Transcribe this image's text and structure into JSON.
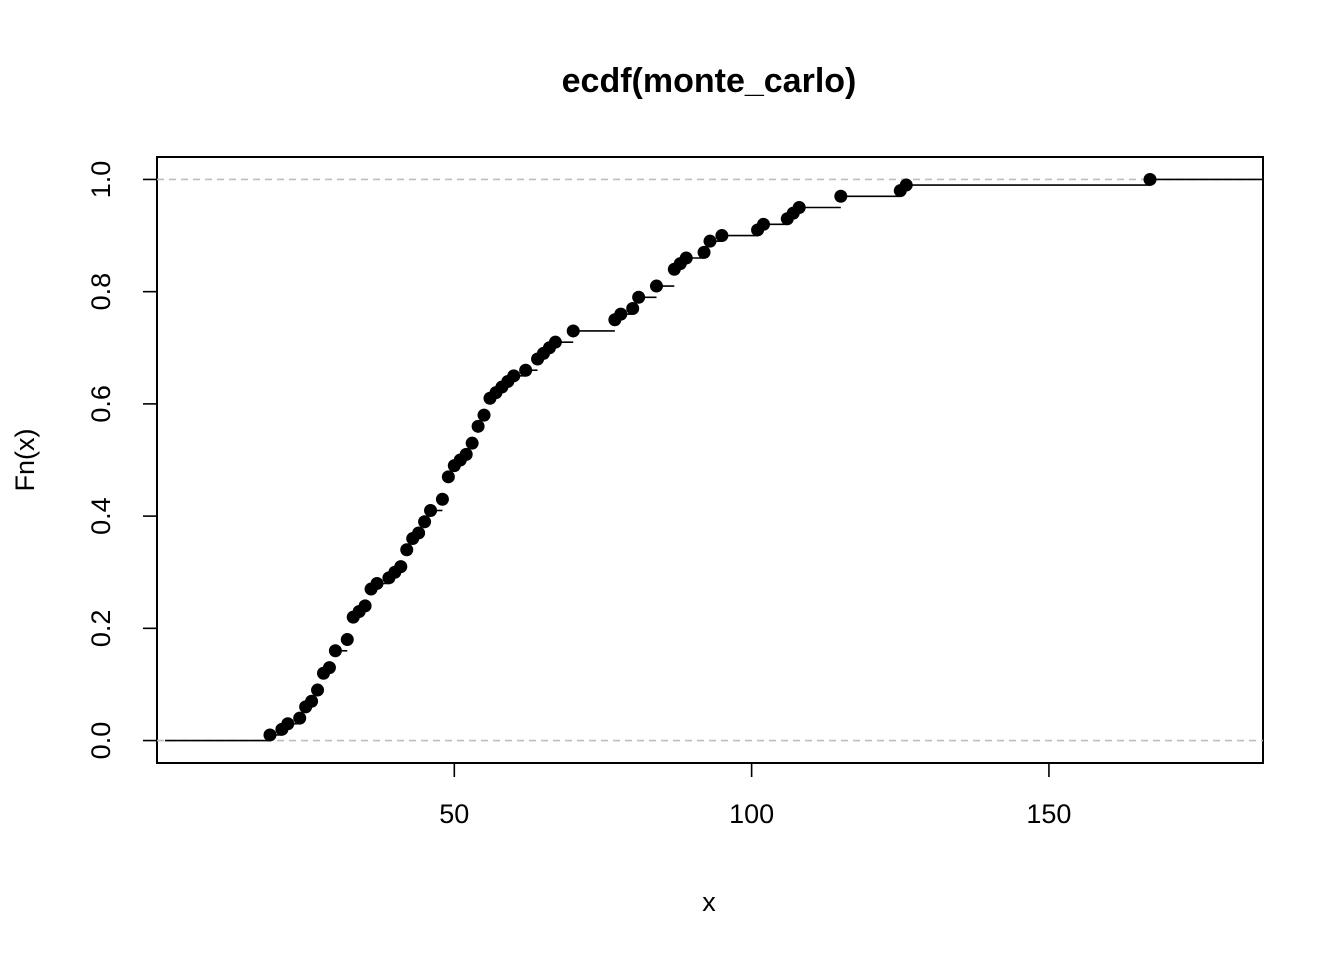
{
  "chart_data": {
    "type": "line",
    "subtype": "ecdf-step",
    "title": "ecdf(monte_carlo)",
    "xlabel": "x",
    "ylabel": "Fn(x)",
    "xlim": [
      0,
      186
    ],
    "ylim": [
      -0.04,
      1.04
    ],
    "x_ticks": [
      "50",
      "100",
      "150"
    ],
    "y_ticks": [
      "0.0",
      "0.2",
      "0.4",
      "0.6",
      "0.8",
      "1.0"
    ],
    "reference_lines_y": [
      0,
      1
    ],
    "grid": false,
    "legend": "none",
    "colors": {
      "points": "#000000",
      "steps": "#000000",
      "reference": "#bebebe"
    },
    "series": [
      {
        "x": [
          19,
          21,
          22,
          24,
          25,
          26,
          27,
          28,
          29,
          30,
          32,
          33,
          34,
          35,
          36,
          37,
          39,
          40,
          41,
          42,
          43,
          44,
          45,
          46,
          48,
          49,
          50,
          51,
          52,
          53,
          54,
          55,
          56,
          57,
          58,
          59,
          60,
          62,
          64,
          65,
          66,
          67,
          70,
          77,
          78,
          80,
          81,
          84,
          87,
          88,
          89,
          92,
          93,
          95,
          101,
          102,
          106,
          107,
          108,
          115,
          125,
          126,
          167
        ],
        "y": [
          0.01,
          0.02,
          0.03,
          0.04,
          0.06,
          0.07,
          0.09,
          0.12,
          0.13,
          0.16,
          0.18,
          0.22,
          0.23,
          0.24,
          0.27,
          0.28,
          0.29,
          0.3,
          0.31,
          0.34,
          0.36,
          0.37,
          0.39,
          0.41,
          0.43,
          0.47,
          0.49,
          0.5,
          0.51,
          0.53,
          0.56,
          0.58,
          0.61,
          0.62,
          0.63,
          0.64,
          0.65,
          0.66,
          0.68,
          0.69,
          0.7,
          0.71,
          0.73,
          0.75,
          0.76,
          0.77,
          0.79,
          0.81,
          0.84,
          0.85,
          0.86,
          0.87,
          0.89,
          0.9,
          0.91,
          0.92,
          0.93,
          0.94,
          0.95,
          0.97,
          0.98,
          0.99,
          1.0
        ]
      }
    ]
  }
}
